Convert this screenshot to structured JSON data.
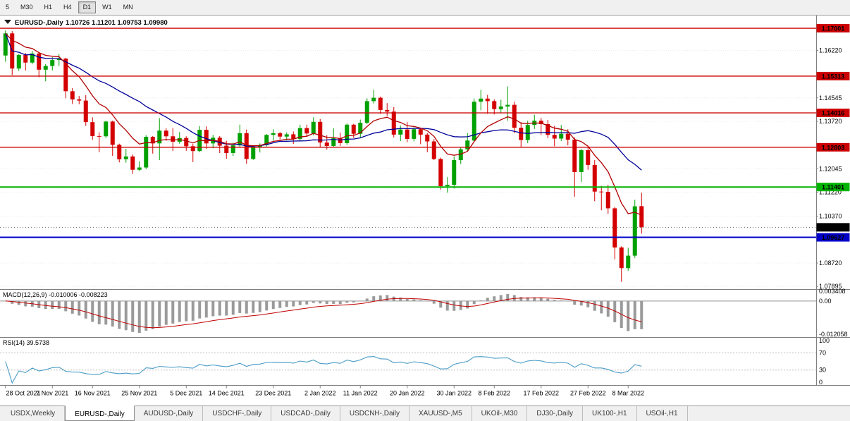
{
  "toolbar": {
    "timeframes": [
      {
        "label": "5",
        "active": false
      },
      {
        "label": "M30",
        "active": false
      },
      {
        "label": "H1",
        "active": false
      },
      {
        "label": "H4",
        "active": false
      },
      {
        "label": "D1",
        "active": true
      },
      {
        "label": "W1",
        "active": false
      },
      {
        "label": "MN",
        "active": false
      }
    ]
  },
  "header": {
    "symbol": "EURUSD-,Daily",
    "ohlc": "1.10726 1.11201 1.09753 1.09980"
  },
  "tabs": {
    "items": [
      "USDX,Weekly",
      "EURUSD-,Daily",
      "AUDUSD-,Daily",
      "USDCHF-,Daily",
      "USDCAD-,Daily",
      "USDCNH-,Daily",
      "XAUUSD-,M5",
      "UKOil-,M30",
      "DJ30-,Daily",
      "UK100-,H1",
      "USOil-,H1"
    ],
    "active_index": 1
  },
  "chart_data": {
    "type": "candlestick",
    "symbol": "EURUSD-",
    "timeframe": "Daily",
    "current_ohlc": {
      "open": "1.10726",
      "high": "1.11201",
      "low": "1.09753",
      "close": "1.09980"
    },
    "price_range": [
      1.078,
      1.1745
    ],
    "colors": {
      "up": "#00A000",
      "down": "#D40000",
      "separator": "#808080",
      "grid": "#ECECEC"
    },
    "price_axis_labels": [
      "1.16220",
      "1.14545",
      "1.13720",
      "1.12045",
      "1.11220",
      "1.10370",
      "1.08720",
      "1.07895"
    ],
    "levels": [
      {
        "value": 1.17001,
        "label": "1.17001",
        "color": "#CC0000",
        "width": 1.4
      },
      {
        "value": 1.15313,
        "label": "1.15313",
        "color": "#CC0000",
        "width": 1.4
      },
      {
        "value": 1.14016,
        "label": "1.14016",
        "color": "#CC0000",
        "width": 1.4
      },
      {
        "value": 1.12803,
        "label": "1.12803",
        "color": "#CC0000",
        "width": 1.4
      },
      {
        "value": 1.11401,
        "label": "1.11401",
        "color": "#00B400",
        "width": 2
      },
      {
        "value": 1.09627,
        "label": "1.09627",
        "color": "#0000C8",
        "width": 2
      }
    ],
    "current_price": {
      "value": 1.0998,
      "label": "1.09980",
      "color": "#000000"
    },
    "moving_averages": [
      {
        "name": "ma-slow",
        "type": "sma",
        "period": 21,
        "color": "#000099"
      },
      {
        "name": "ma-fast",
        "type": "ema",
        "period": 9,
        "color": "#B30000"
      }
    ],
    "macd": {
      "label": "MACD(12,26,9) -0.010006 -0.008223",
      "params": [
        12,
        26,
        9
      ],
      "value": "-0.010006",
      "signal_value": "-0.008223",
      "axis_labels": [
        "0.003408",
        "0.00",
        "-0.012058"
      ],
      "range": [
        -0.0121,
        0.0034
      ],
      "histogram_color": "#9A9A9A",
      "signal_color": "#C00000"
    },
    "rsi": {
      "label": "RSI(14) 39.5738",
      "period": 14,
      "value": "39.5738",
      "axis_labels": [
        "100",
        "70",
        "30",
        "0"
      ],
      "levels": [
        70,
        30
      ],
      "line_color": "#4A9CC7"
    },
    "date_labels": [
      [
        0,
        "28 Oct 2021"
      ],
      [
        7,
        "7 Nov 2021"
      ],
      [
        13,
        "16 Nov 2021"
      ],
      [
        20,
        "25 Nov 2021"
      ],
      [
        27,
        "5 Dec 2021"
      ],
      [
        33,
        "14 Dec 2021"
      ],
      [
        40,
        "23 Dec 2021"
      ],
      [
        47,
        "2 Jan 2022"
      ],
      [
        53,
        "11 Jan 2022"
      ],
      [
        60,
        "20 Jan 2022"
      ],
      [
        67,
        "30 Jan 2022"
      ],
      [
        73,
        "8 Feb 2022"
      ],
      [
        80,
        "17 Feb 2022"
      ],
      [
        87,
        "27 Feb 2022"
      ],
      [
        93,
        "8 Mar 2022"
      ]
    ],
    "candles": [
      [
        1.1604,
        1.1692,
        1.1582,
        1.1682
      ],
      [
        1.1682,
        1.169,
        1.1535,
        1.1558
      ],
      [
        1.1558,
        1.161,
        1.155,
        1.1606
      ],
      [
        1.1606,
        1.1613,
        1.1551,
        1.1579
      ],
      [
        1.1579,
        1.162,
        1.1573,
        1.1611
      ],
      [
        1.1611,
        1.1617,
        1.1527,
        1.1554
      ],
      [
        1.1554,
        1.1574,
        1.1513,
        1.1567
      ],
      [
        1.1567,
        1.1598,
        1.1551,
        1.1588
      ],
      [
        1.1588,
        1.1609,
        1.1567,
        1.1593
      ],
      [
        1.1593,
        1.1596,
        1.1453,
        1.1478
      ],
      [
        1.1478,
        1.1489,
        1.1433,
        1.1449
      ],
      [
        1.1449,
        1.1461,
        1.1432,
        1.1445
      ],
      [
        1.1445,
        1.1464,
        1.1356,
        1.1369
      ],
      [
        1.1369,
        1.1386,
        1.1307,
        1.132
      ],
      [
        1.132,
        1.1333,
        1.1263,
        1.1319
      ],
      [
        1.1319,
        1.1374,
        1.1313,
        1.1371
      ],
      [
        1.1371,
        1.1374,
        1.125,
        1.1289
      ],
      [
        1.1289,
        1.1293,
        1.1227,
        1.1238
      ],
      [
        1.1238,
        1.1275,
        1.1226,
        1.1248
      ],
      [
        1.1248,
        1.1255,
        1.1186,
        1.1201
      ],
      [
        1.1201,
        1.123,
        1.1196,
        1.1209
      ],
      [
        1.1209,
        1.1323,
        1.1203,
        1.1317
      ],
      [
        1.1317,
        1.132,
        1.1258,
        1.1294
      ],
      [
        1.1294,
        1.1383,
        1.1235,
        1.1339
      ],
      [
        1.1339,
        1.1347,
        1.1303,
        1.1319
      ],
      [
        1.1319,
        1.1348,
        1.1267,
        1.13
      ],
      [
        1.13,
        1.1334,
        1.1293,
        1.1313
      ],
      [
        1.1313,
        1.1319,
        1.1268,
        1.1284
      ],
      [
        1.1284,
        1.1292,
        1.1228,
        1.1267
      ],
      [
        1.1267,
        1.1355,
        1.1263,
        1.1342
      ],
      [
        1.1342,
        1.1354,
        1.1275,
        1.1294
      ],
      [
        1.1294,
        1.1324,
        1.1277,
        1.1314
      ],
      [
        1.1314,
        1.132,
        1.126,
        1.1286
      ],
      [
        1.1286,
        1.1303,
        1.124,
        1.126
      ],
      [
        1.126,
        1.1297,
        1.125,
        1.1287
      ],
      [
        1.1287,
        1.136,
        1.1281,
        1.133
      ],
      [
        1.133,
        1.1343,
        1.1222,
        1.1239
      ],
      [
        1.1239,
        1.1287,
        1.1236,
        1.128
      ],
      [
        1.128,
        1.1294,
        1.1262,
        1.1288
      ],
      [
        1.1288,
        1.1327,
        1.1283,
        1.1324
      ],
      [
        1.1324,
        1.1344,
        1.1304,
        1.133
      ],
      [
        1.133,
        1.1334,
        1.1308,
        1.1318
      ],
      [
        1.1318,
        1.1333,
        1.1305,
        1.1326
      ],
      [
        1.1326,
        1.1336,
        1.1292,
        1.131
      ],
      [
        1.131,
        1.136,
        1.1304,
        1.1348
      ],
      [
        1.1348,
        1.136,
        1.1318,
        1.1329
      ],
      [
        1.1329,
        1.1386,
        1.1322,
        1.137
      ],
      [
        1.137,
        1.138,
        1.1279,
        1.1297
      ],
      [
        1.1297,
        1.1323,
        1.1272,
        1.1285
      ],
      [
        1.1285,
        1.1347,
        1.1282,
        1.1312
      ],
      [
        1.1312,
        1.1332,
        1.1285,
        1.1295
      ],
      [
        1.1295,
        1.1364,
        1.1289,
        1.136
      ],
      [
        1.136,
        1.1363,
        1.1313,
        1.1328
      ],
      [
        1.1328,
        1.1378,
        1.1314,
        1.1367
      ],
      [
        1.1367,
        1.1453,
        1.1362,
        1.1443
      ],
      [
        1.1443,
        1.1483,
        1.1435,
        1.1455
      ],
      [
        1.1455,
        1.1459,
        1.1398,
        1.1412
      ],
      [
        1.1412,
        1.1436,
        1.1391,
        1.1406
      ],
      [
        1.1406,
        1.1422,
        1.1315,
        1.1325
      ],
      [
        1.1325,
        1.1357,
        1.1302,
        1.1343
      ],
      [
        1.1343,
        1.1369,
        1.1298,
        1.131
      ],
      [
        1.131,
        1.1351,
        1.1301,
        1.1344
      ],
      [
        1.1344,
        1.1349,
        1.1291,
        1.1325
      ],
      [
        1.1325,
        1.1331,
        1.1263,
        1.1301
      ],
      [
        1.1301,
        1.1309,
        1.1235,
        1.1239
      ],
      [
        1.1239,
        1.1244,
        1.1131,
        1.1143
      ],
      [
        1.1143,
        1.1175,
        1.112,
        1.1148
      ],
      [
        1.1148,
        1.1248,
        1.1135,
        1.1235
      ],
      [
        1.1235,
        1.128,
        1.1221,
        1.1273
      ],
      [
        1.1273,
        1.133,
        1.1266,
        1.1304
      ],
      [
        1.1304,
        1.1452,
        1.13,
        1.1441
      ],
      [
        1.1441,
        1.1483,
        1.1411,
        1.1452
      ],
      [
        1.1452,
        1.1465,
        1.1398,
        1.1443
      ],
      [
        1.1443,
        1.1449,
        1.1396,
        1.1415
      ],
      [
        1.1415,
        1.1448,
        1.1403,
        1.1424
      ],
      [
        1.1424,
        1.1495,
        1.1374,
        1.143
      ],
      [
        1.143,
        1.1441,
        1.133,
        1.1349
      ],
      [
        1.1349,
        1.1369,
        1.128,
        1.1306
      ],
      [
        1.1306,
        1.1374,
        1.1295,
        1.1359
      ],
      [
        1.1359,
        1.1395,
        1.1345,
        1.1374
      ],
      [
        1.1374,
        1.1384,
        1.1324,
        1.1362
      ],
      [
        1.1362,
        1.1377,
        1.1312,
        1.1324
      ],
      [
        1.1324,
        1.1356,
        1.1284,
        1.1311
      ],
      [
        1.1311,
        1.1359,
        1.1302,
        1.1328
      ],
      [
        1.1328,
        1.1344,
        1.1287,
        1.1307
      ],
      [
        1.1307,
        1.1315,
        1.1106,
        1.1193
      ],
      [
        1.1193,
        1.1274,
        1.1158,
        1.127
      ],
      [
        1.127,
        1.1279,
        1.1201,
        1.1218
      ],
      [
        1.1218,
        1.1235,
        1.109,
        1.1124
      ],
      [
        1.1124,
        1.1144,
        1.1058,
        1.1123
      ],
      [
        1.1123,
        1.1148,
        1.1045,
        1.1065
      ],
      [
        1.1065,
        1.107,
        1.0885,
        1.0927
      ],
      [
        1.0927,
        1.0931,
        1.0806,
        1.0854
      ],
      [
        1.0854,
        1.0926,
        1.0845,
        1.0898
      ],
      [
        1.0898,
        1.1095,
        1.089,
        1.1072
      ],
      [
        1.10726,
        1.11201,
        1.09753,
        1.0998
      ]
    ]
  }
}
